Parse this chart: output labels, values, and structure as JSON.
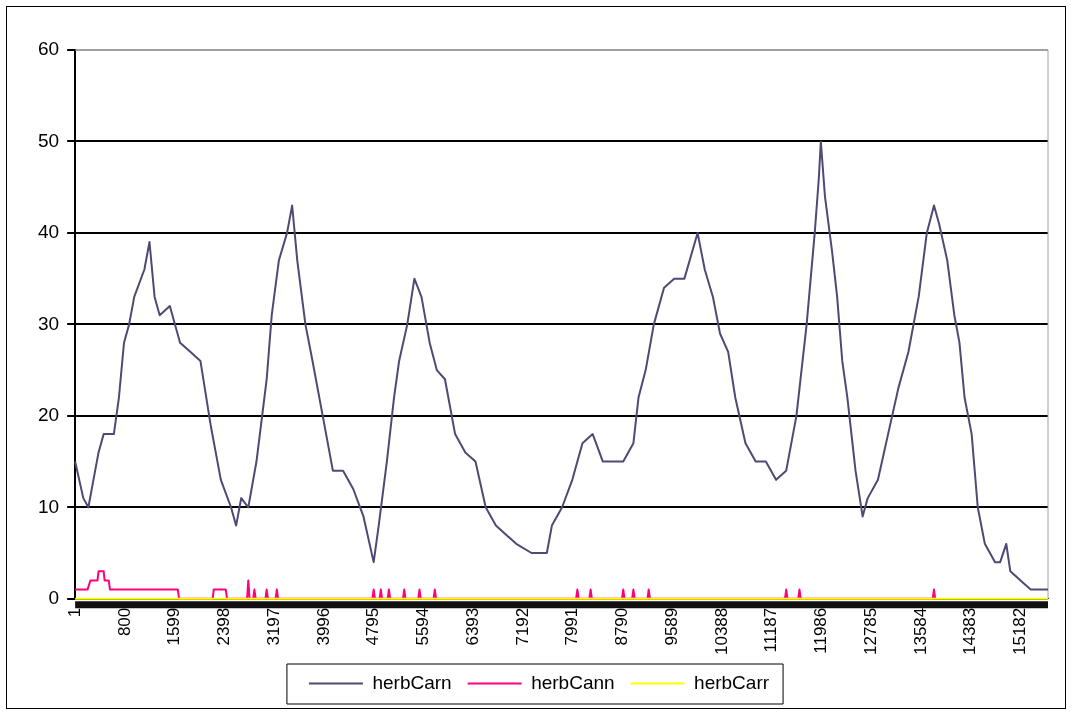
{
  "chart_data": {
    "type": "line",
    "xlim": [
      1,
      15624
    ],
    "xticks": [
      1,
      800,
      1599,
      2398,
      3197,
      3996,
      4795,
      5594,
      6393,
      7192,
      7991,
      8790,
      9589,
      10388,
      11187,
      11986,
      12785,
      13584,
      14383,
      15182
    ],
    "ylim": [
      0,
      60
    ],
    "yticks": [
      0,
      10,
      20,
      30,
      40,
      50,
      60
    ],
    "grid": "y",
    "legend": "bottom",
    "marker": "none",
    "line_style": "solid",
    "series": [
      {
        "name": "herbCarn",
        "color": "#4d4a75",
        "x": [
          1,
          132,
          214,
          295,
          377,
          459,
          623,
          704,
          786,
          868,
          950,
          1113,
          1195,
          1277,
          1359,
          1522,
          1686,
          1850,
          2013,
          2177,
          2341,
          2504,
          2586,
          2668,
          2782,
          2913,
          3077,
          3158,
          3273,
          3404,
          3486,
          3568,
          3699,
          3813,
          3977,
          4140,
          4304,
          4467,
          4631,
          4795,
          4876,
          5007,
          5122,
          5204,
          5335,
          5449,
          5563,
          5694,
          5809,
          5940,
          6103,
          6267,
          6430,
          6594,
          6758,
          6921,
          7085,
          7330,
          7576,
          7657,
          7821,
          7985,
          8148,
          8312,
          8476,
          8639,
          8803,
          8966,
          9048,
          9163,
          9294,
          9458,
          9621,
          9785,
          9997,
          10112,
          10243,
          10357,
          10488,
          10602,
          10766,
          10930,
          11093,
          11257,
          11420,
          11584,
          11748,
          11878,
          11944,
          11976,
          12042,
          12156,
          12238,
          12320,
          12402,
          12533,
          12647,
          12729,
          12893,
          13056,
          13220,
          13383,
          13547,
          13678,
          13793,
          13875,
          14006,
          14120,
          14202,
          14284,
          14398,
          14496,
          14610,
          14774,
          14856,
          14954,
          15019,
          15183,
          15346,
          15624
        ],
        "values": [
          15,
          11,
          10,
          13,
          16,
          18,
          18,
          22,
          28,
          30,
          33,
          36,
          39,
          33,
          31,
          32,
          28,
          27,
          26,
          19,
          13,
          10,
          8,
          11,
          10,
          15,
          24,
          31,
          37,
          40,
          43,
          37,
          30,
          26,
          20,
          14,
          14,
          12,
          9,
          4,
          8,
          15,
          22,
          26,
          30,
          35,
          33,
          28,
          25,
          24,
          18,
          16,
          15,
          10,
          8,
          7,
          6,
          5,
          5,
          8,
          10,
          13,
          17,
          18,
          15,
          15,
          15,
          17,
          22,
          25,
          30,
          34,
          35,
          35,
          40,
          36,
          33,
          29,
          27,
          22,
          17,
          15,
          15,
          13,
          14,
          20,
          30,
          40,
          46,
          50,
          44,
          38,
          33,
          26,
          22,
          14,
          9,
          11,
          13,
          18,
          23,
          27,
          33,
          40,
          43,
          41,
          37,
          31,
          28,
          22,
          18,
          10,
          6,
          4,
          4,
          6,
          3,
          2,
          1,
          1
        ]
      },
      {
        "name": "herbCann",
        "color": "#ff0080",
        "x": [
          1,
          200,
          246,
          360,
          377,
          459,
          475,
          541,
          560,
          1650,
          1670,
          2210,
          2226,
          2420,
          2440,
          2762,
          2782,
          2802,
          2860,
          2880,
          2900,
          3057,
          3077,
          3097,
          3220,
          3240,
          3260,
          4775,
          4795,
          4815,
          4890,
          4910,
          4930,
          5020,
          5040,
          5060,
          5266,
          5286,
          5306,
          5511,
          5531,
          5551,
          5757,
          5777,
          5797,
          8046,
          8066,
          8086,
          8259,
          8279,
          8299,
          8783,
          8803,
          8823,
          8946,
          8966,
          8986,
          9192,
          9212,
          9232,
          11400,
          11420,
          11440,
          11613,
          11633,
          11653,
          13773,
          13793,
          13813
        ],
        "values": [
          1,
          1,
          2,
          2,
          3,
          3,
          2,
          2,
          1,
          1,
          0,
          0,
          1,
          1,
          0,
          0,
          2,
          0,
          0,
          1,
          0,
          0,
          1,
          0,
          0,
          1,
          0,
          0,
          1,
          0,
          0,
          1,
          0,
          0,
          1,
          0,
          0,
          1,
          0,
          0,
          1,
          0,
          0,
          1,
          0,
          0,
          1,
          0,
          0,
          1,
          0,
          0,
          1,
          0,
          0,
          1,
          0,
          0,
          1,
          0,
          0,
          1,
          0,
          0,
          1,
          0,
          0,
          1,
          0
        ]
      },
      {
        "name": "herbCarr",
        "color": "#ffff00",
        "x": [
          1,
          15624
        ],
        "values": [
          0,
          0
        ]
      }
    ]
  }
}
